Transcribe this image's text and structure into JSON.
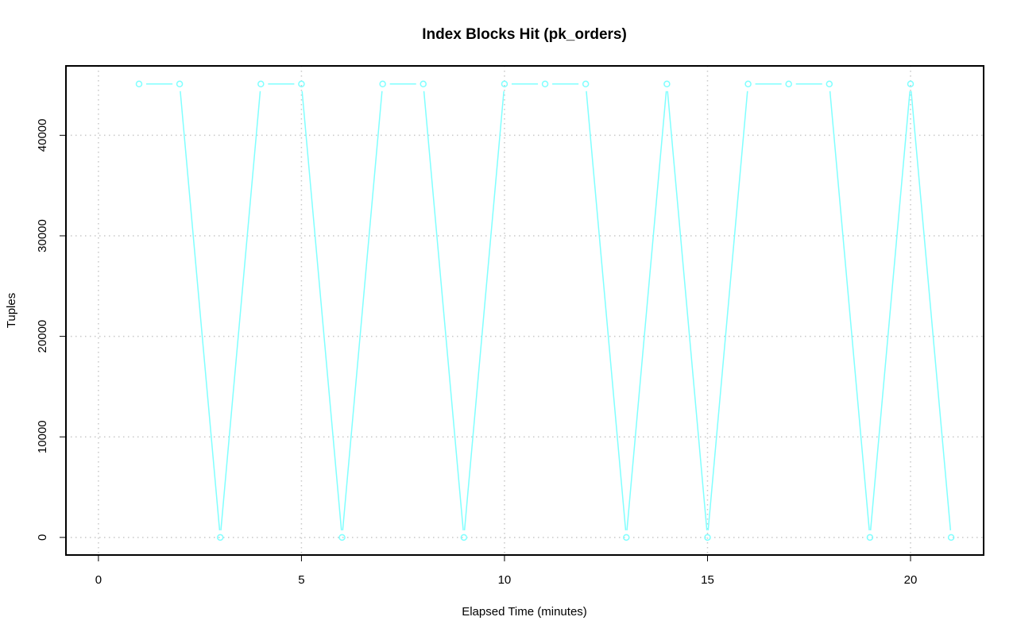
{
  "chart_data": {
    "type": "line",
    "title": "Index Blocks Hit (pk_orders)",
    "xlabel": "Elapsed Time (minutes)",
    "ylabel": "Tuples",
    "xlim": [
      -0.8,
      21.8
    ],
    "ylim": [
      -1750,
      46900
    ],
    "xticks": [
      0,
      5,
      10,
      15,
      20
    ],
    "yticks": [
      0,
      10000,
      20000,
      30000,
      40000
    ],
    "grid": true,
    "legend": "none",
    "line_color": "#80ffff",
    "series": [
      {
        "x": [
          1,
          2,
          3,
          4,
          5,
          6,
          7,
          8,
          9,
          10,
          11,
          12,
          13,
          14,
          15,
          16,
          17,
          18,
          19,
          20,
          21
        ],
        "values": [
          45100,
          45100,
          0,
          45100,
          45100,
          0,
          45100,
          45100,
          0,
          45100,
          45100,
          45100,
          0,
          45100,
          0,
          45100,
          45100,
          45100,
          0,
          45100,
          0
        ]
      }
    ]
  }
}
